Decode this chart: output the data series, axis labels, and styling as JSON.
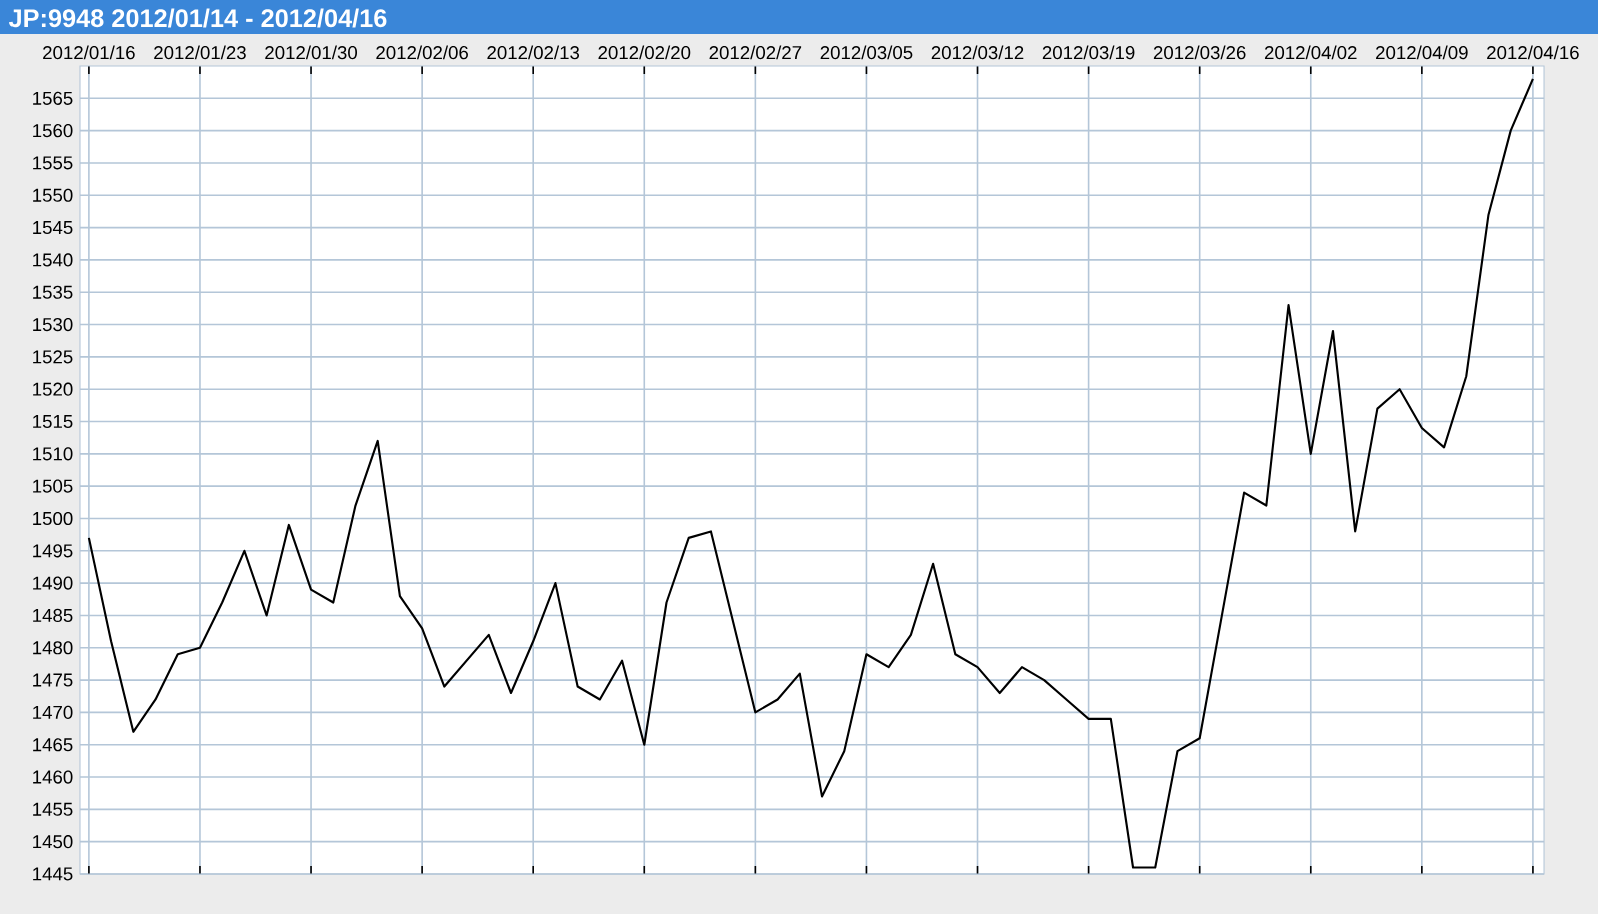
{
  "chart_data": {
    "type": "line",
    "title": "JP:9948 2012/01/14 - 2012/04/16",
    "categories": [
      "2012/01/16",
      null,
      null,
      null,
      null,
      "2012/01/23",
      null,
      null,
      null,
      null,
      "2012/01/30",
      null,
      null,
      null,
      null,
      "2012/02/06",
      null,
      null,
      null,
      null,
      "2012/02/13",
      null,
      null,
      null,
      null,
      "2012/02/20",
      null,
      null,
      null,
      null,
      "2012/02/27",
      null,
      null,
      null,
      null,
      "2012/03/05",
      null,
      null,
      null,
      null,
      "2012/03/12",
      null,
      null,
      null,
      null,
      "2012/03/19",
      null,
      null,
      null,
      null,
      "2012/03/26",
      null,
      null,
      null,
      null,
      "2012/04/02",
      null,
      null,
      null,
      null,
      "2012/04/09",
      null,
      null,
      null,
      null,
      "2012/04/16"
    ],
    "series": [
      {
        "color": "#000000",
        "values": [
          1497,
          1481,
          1467,
          1472,
          1479,
          1480,
          1487,
          1495,
          1485,
          1499,
          1489,
          1487,
          1502,
          1512,
          1488,
          1483,
          1474,
          1478,
          1482,
          1473,
          1481,
          1490,
          1474,
          1472,
          1478,
          1465,
          1487,
          1497,
          1498,
          1484,
          1470,
          1472,
          1476,
          1457,
          1464,
          1479,
          1477,
          1482,
          1493,
          1479,
          1477,
          1473,
          1477,
          1475,
          1472,
          1469,
          1469,
          1446,
          1446,
          1464,
          1466,
          1485,
          1504,
          1502,
          1533,
          1510,
          1529,
          1498,
          1517,
          1520,
          1514,
          1511,
          1522,
          1547,
          1560,
          1568
        ]
      }
    ],
    "ylim": [
      1445,
      1570
    ],
    "yticks": [
      1445,
      1450,
      1455,
      1460,
      1465,
      1470,
      1475,
      1480,
      1485,
      1490,
      1495,
      1500,
      1505,
      1510,
      1515,
      1520,
      1525,
      1530,
      1535,
      1540,
      1545,
      1550,
      1555,
      1560,
      1565
    ],
    "grid": true,
    "marker": "none",
    "line_style": "solid"
  }
}
